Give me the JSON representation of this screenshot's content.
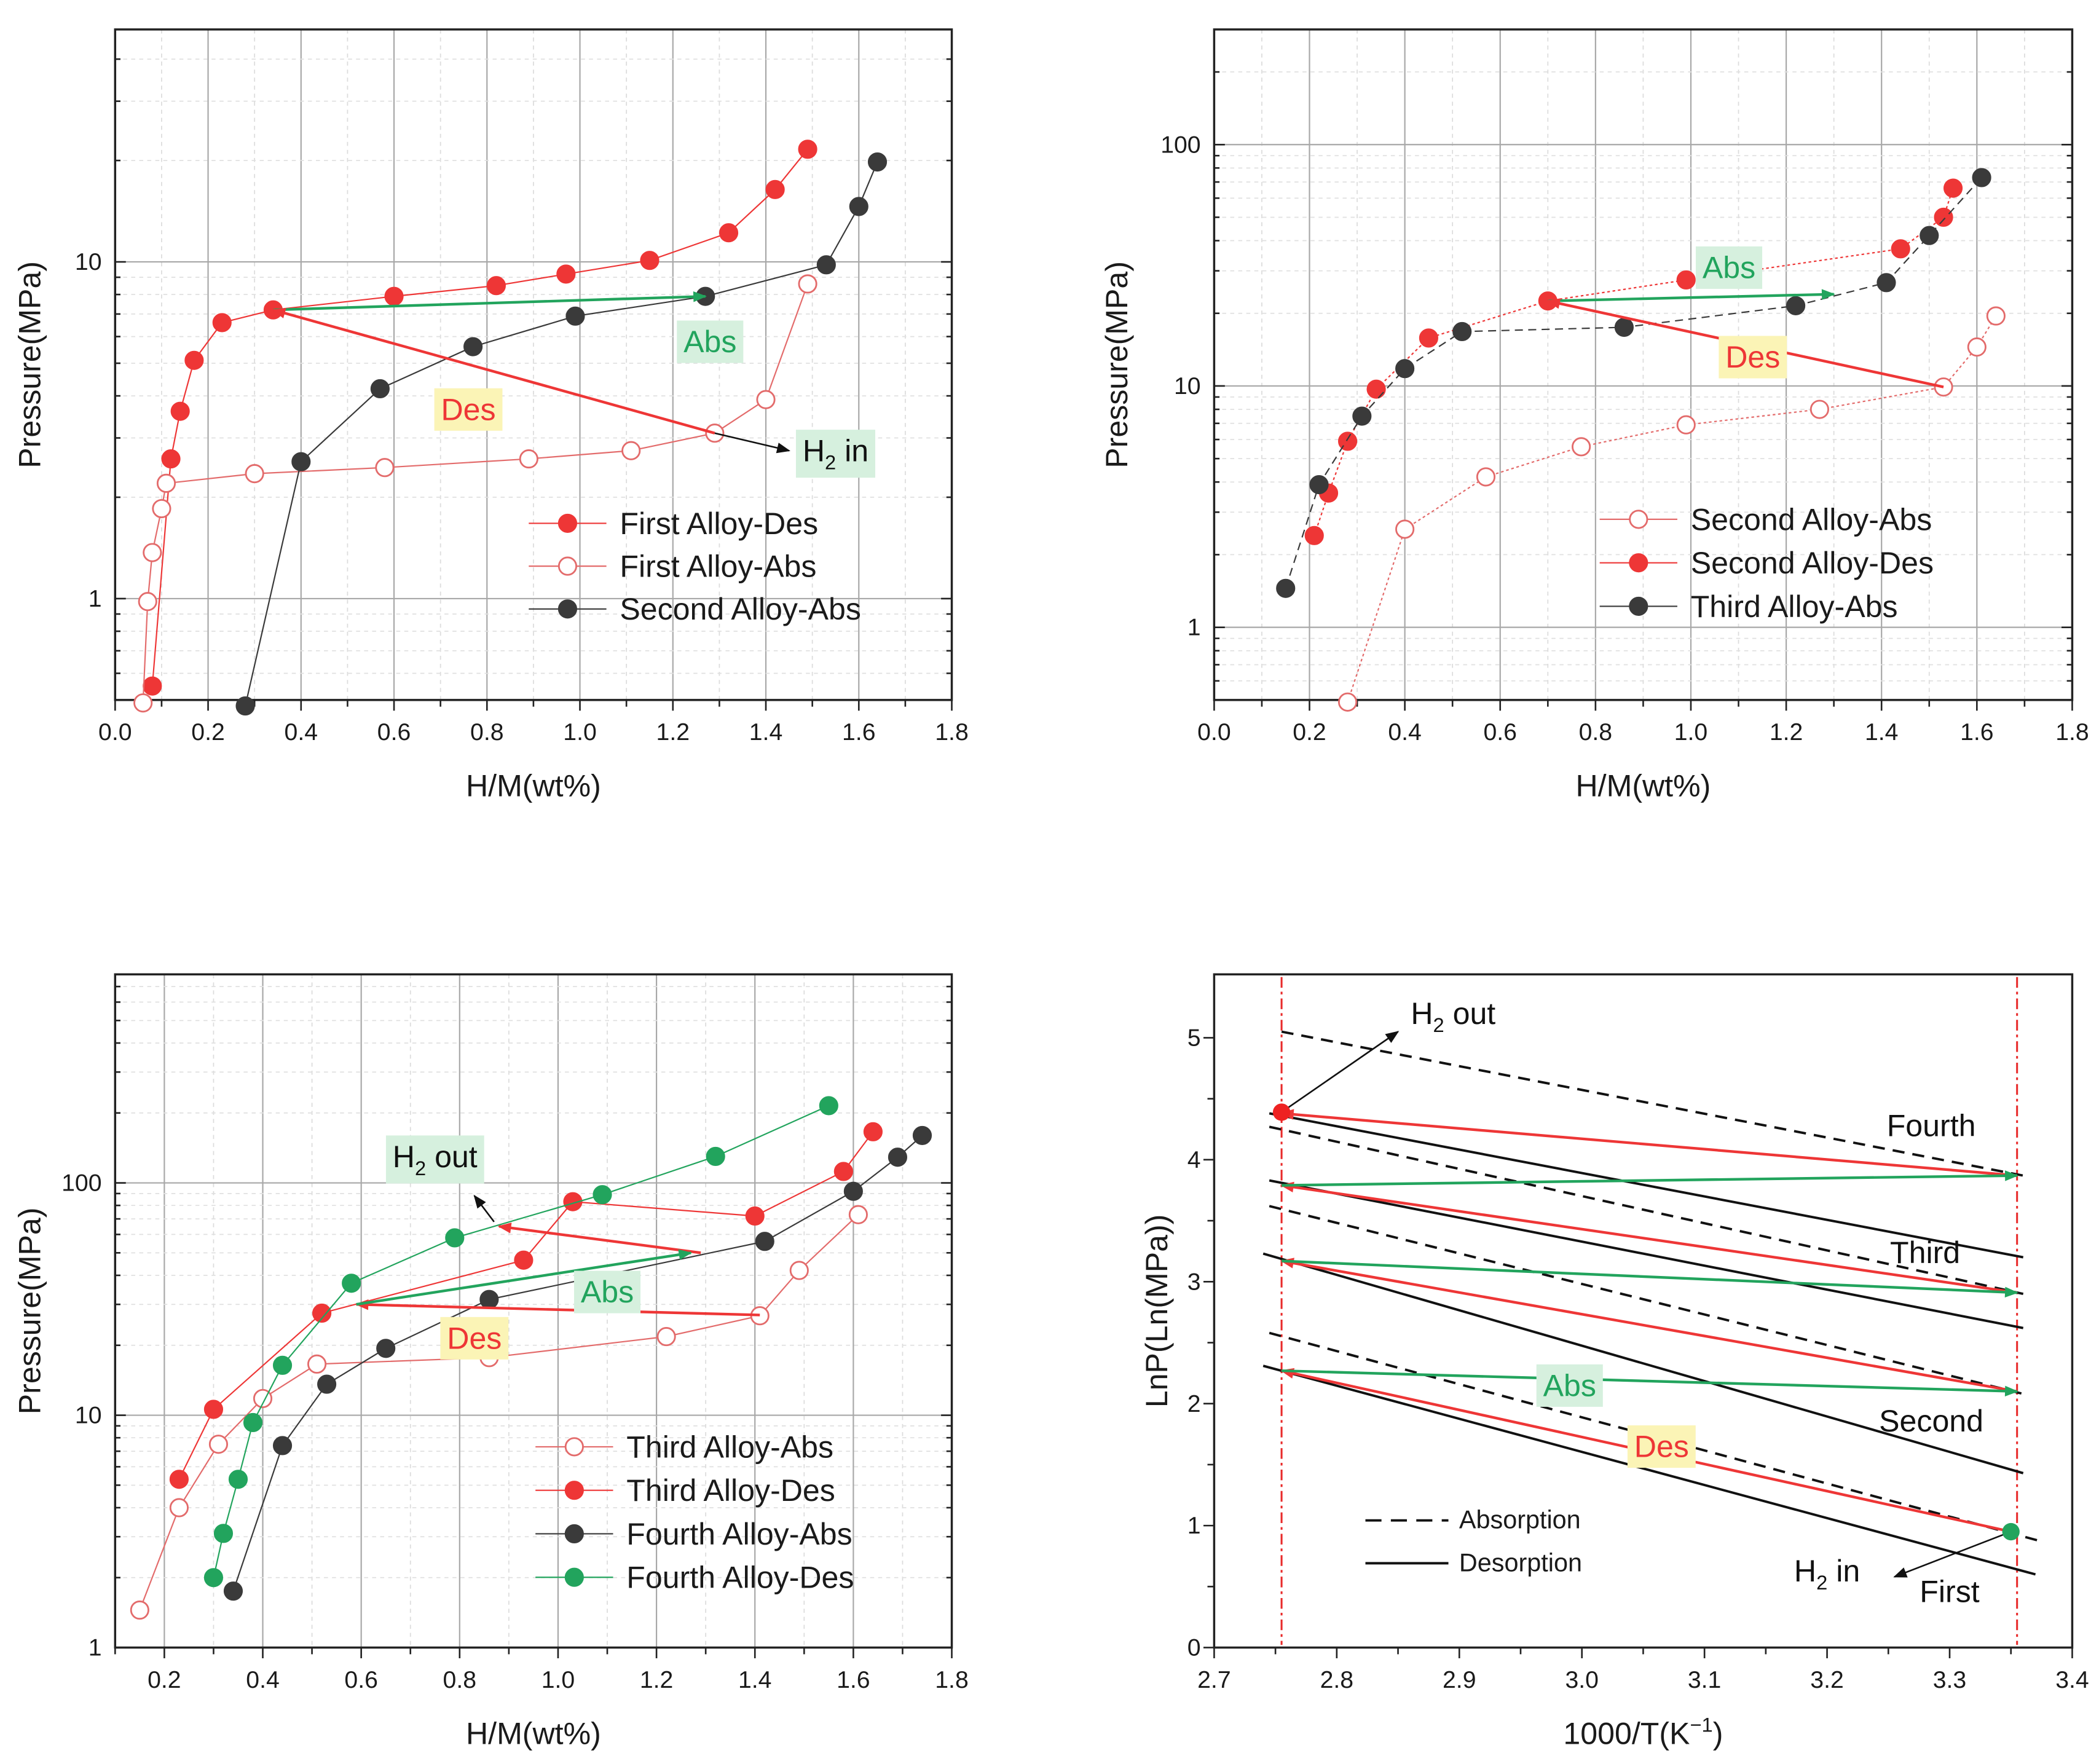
{
  "colors": {
    "des_red": "#ee3636",
    "abs_red": "#e36b6b",
    "dark": "#3a3a3a",
    "green": "#22a45d",
    "label_green_bg": "#d6f0de",
    "label_yellow_bg": "#fbf4b6"
  },
  "chart_data": [
    {
      "type": "line",
      "title": "",
      "xlabel": "H/M(wt%)",
      "ylabel": "Pressure(MPa)",
      "xlim": [
        0,
        1.8
      ],
      "ylim": [
        0.5,
        49
      ],
      "yscale": "log",
      "grid": true,
      "xticks": [
        "0.0",
        "0.2",
        "0.4",
        "0.6",
        "0.8",
        "1.0",
        "1.2",
        "1.4",
        "1.6",
        "1.8"
      ],
      "yticks": [
        "1",
        "10"
      ],
      "legend_placement": "lower-right",
      "series": [
        {
          "name": "First Alloy-Des",
          "marker": "filled",
          "color": "#ee3636",
          "line": "solid",
          "points": [
            [
              0.08,
              0.55
            ],
            [
              0.12,
              2.6
            ],
            [
              0.14,
              3.6
            ],
            [
              0.17,
              5.1
            ],
            [
              0.23,
              6.6
            ],
            [
              0.34,
              7.2
            ],
            [
              0.6,
              7.9
            ],
            [
              0.82,
              8.5
            ],
            [
              0.97,
              9.2
            ],
            [
              1.15,
              10.1
            ],
            [
              1.32,
              12.2
            ],
            [
              1.42,
              16.4
            ],
            [
              1.49,
              21.6
            ]
          ]
        },
        {
          "name": "First Alloy-Abs",
          "marker": "open",
          "color": "#e36b6b",
          "line": "solid",
          "points": [
            [
              0.06,
              0.49
            ],
            [
              0.07,
              0.98
            ],
            [
              0.08,
              1.37
            ],
            [
              0.1,
              1.85
            ],
            [
              0.11,
              2.2
            ],
            [
              0.3,
              2.35
            ],
            [
              0.58,
              2.45
            ],
            [
              0.89,
              2.6
            ],
            [
              1.11,
              2.75
            ],
            [
              1.29,
              3.1
            ],
            [
              1.4,
              3.9
            ],
            [
              1.49,
              8.6
            ]
          ]
        },
        {
          "name": "Second Alloy-Abs",
          "marker": "filled",
          "color": "#3a3a3a",
          "line": "solid",
          "points": [
            [
              0.28,
              0.48
            ],
            [
              0.4,
              2.55
            ],
            [
              0.57,
              4.2
            ],
            [
              0.77,
              5.6
            ],
            [
              0.99,
              6.9
            ],
            [
              1.27,
              7.9
            ],
            [
              1.53,
              9.8
            ],
            [
              1.6,
              14.6
            ],
            [
              1.64,
              19.8
            ]
          ]
        }
      ],
      "arrows": [
        {
          "from": [
            0.34,
            7.2
          ],
          "to": [
            1.27,
            7.9
          ],
          "color": "#22a45d"
        },
        {
          "from": [
            1.29,
            3.1
          ],
          "to": [
            0.34,
            7.2
          ],
          "color": "#ee3636"
        },
        {
          "from": [
            1.29,
            3.1
          ],
          "to": [
            1.45,
            2.75
          ],
          "color": "#111111"
        }
      ],
      "annotations": [
        {
          "text": [
            "Abs"
          ],
          "x": 1.28,
          "y": 5.8,
          "color": "#22a45d",
          "bg": "#d6f0de"
        },
        {
          "text": [
            "Des"
          ],
          "x": 0.76,
          "y": 3.65,
          "color": "#ee3636",
          "bg": "#fbf4b6"
        },
        {
          "text": [
            "H",
            "2",
            " in"
          ],
          "x": 1.55,
          "y": 2.75,
          "color": "#111111",
          "bg": "#d6f0de"
        }
      ]
    },
    {
      "type": "line",
      "title": "",
      "xlabel": "H/M(wt%)",
      "ylabel": "Pressure(MPa)",
      "xlim": [
        0,
        1.8
      ],
      "ylim": [
        0.5,
        300
      ],
      "yscale": "log",
      "grid": true,
      "xticks": [
        "0.0",
        "0.2",
        "0.4",
        "0.6",
        "0.8",
        "1.0",
        "1.2",
        "1.4",
        "1.6",
        "1.8"
      ],
      "yticks": [
        "1",
        "10",
        "100"
      ],
      "legend_placement": "lower-right",
      "series": [
        {
          "name": "Second Alloy-Abs",
          "marker": "open",
          "color": "#e36b6b",
          "line": "dotted",
          "points": [
            [
              0.28,
              0.49
            ],
            [
              0.4,
              2.55
            ],
            [
              0.57,
              4.2
            ],
            [
              0.77,
              5.6
            ],
            [
              0.99,
              6.9
            ],
            [
              1.27,
              8.0
            ],
            [
              1.53,
              9.9
            ],
            [
              1.6,
              14.5
            ],
            [
              1.64,
              19.5
            ]
          ]
        },
        {
          "name": "Second Alloy-Des",
          "marker": "filled",
          "color": "#ee3636",
          "line": "dotted",
          "points": [
            [
              0.21,
              2.4
            ],
            [
              0.24,
              3.6
            ],
            [
              0.28,
              5.9
            ],
            [
              0.34,
              9.7
            ],
            [
              0.45,
              15.8
            ],
            [
              0.7,
              22.5
            ],
            [
              0.99,
              27.5
            ],
            [
              1.44,
              37
            ],
            [
              1.53,
              50
            ],
            [
              1.55,
              66
            ]
          ]
        },
        {
          "name": "Third Alloy-Abs",
          "marker": "filled",
          "color": "#3a3a3a",
          "line": "dashed",
          "points": [
            [
              0.15,
              1.45
            ],
            [
              0.22,
              3.9
            ],
            [
              0.31,
              7.5
            ],
            [
              0.4,
              11.8
            ],
            [
              0.52,
              16.8
            ],
            [
              0.86,
              17.5
            ],
            [
              1.22,
              21.5
            ],
            [
              1.41,
              26.8
            ],
            [
              1.5,
              42
            ],
            [
              1.61,
              73
            ]
          ]
        }
      ],
      "arrows": [
        {
          "from": [
            0.7,
            22.5
          ],
          "to": [
            1.3,
            24
          ],
          "color": "#22a45d"
        },
        {
          "from": [
            1.53,
            9.9
          ],
          "to": [
            0.7,
            22.5
          ],
          "color": "#ee3636"
        }
      ],
      "annotations": [
        {
          "text": [
            "Abs"
          ],
          "x": 1.08,
          "y": 31,
          "color": "#22a45d",
          "bg": "#d6f0de"
        },
        {
          "text": [
            "Des"
          ],
          "x": 1.13,
          "y": 13.2,
          "color": "#ee3636",
          "bg": "#fbf4b6"
        }
      ]
    },
    {
      "type": "line",
      "title": "",
      "xlabel": "H/M(wt%)",
      "ylabel": "Pressure(MPa)",
      "xlim": [
        0.1,
        1.8
      ],
      "ylim": [
        1,
        790
      ],
      "yscale": "log",
      "grid": true,
      "xticks": [
        "0.2",
        "0.4",
        "0.6",
        "0.8",
        "1.0",
        "1.2",
        "1.4",
        "1.6",
        "1.8"
      ],
      "yticks": [
        "1",
        "10",
        "100"
      ],
      "legend_placement": "lower-right",
      "series": [
        {
          "name": "Third Alloy-Abs",
          "marker": "open",
          "color": "#e36b6b",
          "line": "solid",
          "points": [
            [
              0.15,
              1.45
            ],
            [
              0.23,
              4.0
            ],
            [
              0.31,
              7.5
            ],
            [
              0.4,
              11.8
            ],
            [
              0.51,
              16.6
            ],
            [
              0.86,
              17.7
            ],
            [
              1.22,
              21.8
            ],
            [
              1.41,
              26.8
            ],
            [
              1.49,
              42
            ],
            [
              1.61,
              73
            ]
          ]
        },
        {
          "name": "Third Alloy-Des",
          "marker": "filled",
          "color": "#ee3636",
          "line": "solid",
          "points": [
            [
              0.23,
              5.3
            ],
            [
              0.3,
              10.6
            ],
            [
              0.52,
              27.5
            ],
            [
              0.93,
              46.5
            ],
            [
              1.03,
              83
            ],
            [
              1.4,
              72
            ],
            [
              1.58,
              112
            ],
            [
              1.64,
              166
            ]
          ]
        },
        {
          "name": "Fourth Alloy-Abs",
          "marker": "filled",
          "color": "#3a3a3a",
          "line": "solid",
          "points": [
            [
              0.34,
              1.75
            ],
            [
              0.44,
              7.4
            ],
            [
              0.53,
              13.6
            ],
            [
              0.65,
              19.4
            ],
            [
              0.86,
              31.5
            ],
            [
              1.42,
              56
            ],
            [
              1.6,
              92
            ],
            [
              1.69,
              129
            ],
            [
              1.74,
              160
            ]
          ]
        },
        {
          "name": "Fourth Alloy-Des",
          "marker": "filled",
          "color": "#22a45d",
          "line": "solid",
          "points": [
            [
              0.3,
              2.0
            ],
            [
              0.32,
              3.1
            ],
            [
              0.35,
              5.3
            ],
            [
              0.38,
              9.3
            ],
            [
              0.44,
              16.4
            ],
            [
              0.58,
              37
            ],
            [
              0.79,
              58
            ],
            [
              1.09,
              89
            ],
            [
              1.32,
              130
            ],
            [
              1.55,
              215
            ]
          ]
        }
      ],
      "arrows": [
        {
          "from": [
            1.29,
            50
          ],
          "to": [
            0.88,
            65
          ],
          "color": "#ee3636"
        },
        {
          "from": [
            1.41,
            27
          ],
          "to": [
            0.59,
            30
          ],
          "color": "#ee3636"
        },
        {
          "from": [
            0.59,
            30
          ],
          "to": [
            1.27,
            50
          ],
          "color": "#22a45d"
        },
        {
          "from": [
            0.87,
            68
          ],
          "to": [
            0.83,
            88
          ],
          "color": "#111111"
        }
      ],
      "annotations": [
        {
          "text": [
            "H",
            "2",
            " out"
          ],
          "x": 0.75,
          "y": 130,
          "color": "#111111",
          "bg": "#d6f0de"
        },
        {
          "text": [
            "Abs"
          ],
          "x": 1.1,
          "y": 34,
          "color": "#22a45d",
          "bg": "#d6f0de"
        },
        {
          "text": [
            "Des"
          ],
          "x": 0.83,
          "y": 21.5,
          "color": "#ee3636",
          "bg": "#fbf4b6"
        }
      ]
    },
    {
      "type": "line",
      "title": "",
      "xlabel": [
        "1000/T(K",
        "−1",
        ")"
      ],
      "ylabel": "LnP(Ln(MPa))",
      "xlim": [
        2.7,
        3.4
      ],
      "ylim": [
        0,
        5.52
      ],
      "yscale": "linear",
      "grid": false,
      "xticks": [
        "2.7",
        "2.8",
        "2.9",
        "3.0",
        "3.1",
        "3.2",
        "3.3",
        "3.4"
      ],
      "yticks": [
        "0",
        "1",
        "2",
        "3",
        "4",
        "5"
      ],
      "legend_placement": "lower-left",
      "legend": [
        {
          "name": "Absorption",
          "line": "dashed"
        },
        {
          "name": "Desorption",
          "line": "solid"
        }
      ],
      "lines": [
        {
          "name": "Fourth Absorption",
          "line": "dashed",
          "points": [
            [
              2.755,
              5.05
            ],
            [
              3.36,
              3.87
            ]
          ]
        },
        {
          "name": "Third Absorption",
          "line": "dashed",
          "points": [
            [
              2.745,
              4.27
            ],
            [
              3.36,
              2.9
            ]
          ]
        },
        {
          "name": "Second Absorption",
          "line": "dashed",
          "points": [
            [
              2.745,
              3.62
            ],
            [
              3.36,
              2.08
            ]
          ]
        },
        {
          "name": "First Absorption",
          "line": "dashed",
          "points": [
            [
              2.745,
              2.58
            ],
            [
              3.375,
              0.87
            ]
          ]
        },
        {
          "name": "Fourth Desorption",
          "line": "solid",
          "points": [
            [
              2.745,
              4.38
            ],
            [
              3.36,
              3.2
            ]
          ]
        },
        {
          "name": "Third Desorption",
          "line": "solid",
          "points": [
            [
              2.745,
              3.83
            ],
            [
              3.36,
              2.62
            ]
          ]
        },
        {
          "name": "Second Desorption",
          "line": "solid",
          "points": [
            [
              2.74,
              3.23
            ],
            [
              3.36,
              1.43
            ]
          ]
        },
        {
          "name": "First Desorption",
          "line": "solid",
          "points": [
            [
              2.74,
              2.31
            ],
            [
              3.37,
              0.6
            ]
          ]
        }
      ],
      "reference_x": [
        2.755,
        3.355
      ],
      "markers": [
        {
          "x": 2.755,
          "y": 4.39,
          "color": "#ee2222"
        },
        {
          "x": 3.35,
          "y": 0.95,
          "color": "#22a45d"
        }
      ],
      "arrows": [
        {
          "from": [
            3.355,
            3.87
          ],
          "to": [
            2.755,
            4.38
          ],
          "color": "#ee3636"
        },
        {
          "from": [
            3.355,
            2.91
          ],
          "to": [
            2.755,
            3.79
          ],
          "color": "#ee3636"
        },
        {
          "from": [
            3.355,
            2.1
          ],
          "to": [
            2.755,
            3.17
          ],
          "color": "#ee3636"
        },
        {
          "from": [
            3.35,
            0.95
          ],
          "to": [
            2.755,
            2.27
          ],
          "color": "#ee3636"
        },
        {
          "from": [
            2.755,
            3.79
          ],
          "to": [
            3.355,
            3.87
          ],
          "color": "#22a45d"
        },
        {
          "from": [
            2.755,
            3.17
          ],
          "to": [
            3.355,
            2.91
          ],
          "color": "#22a45d"
        },
        {
          "from": [
            2.755,
            2.27
          ],
          "to": [
            3.355,
            2.1
          ],
          "color": "#22a45d"
        },
        {
          "from": [
            2.755,
            4.39
          ],
          "to": [
            2.85,
            5.05
          ],
          "color": "#111111"
        },
        {
          "from": [
            3.35,
            0.95
          ],
          "to": [
            3.255,
            0.58
          ],
          "color": "#111111"
        }
      ],
      "annotations": [
        {
          "text": [
            "H",
            "2",
            " out"
          ],
          "x": 2.895,
          "y": 5.2,
          "color": "#111111",
          "bg": ""
        },
        {
          "text": [
            "Fourth"
          ],
          "x": 3.285,
          "y": 4.28,
          "color": "#111111",
          "bg": ""
        },
        {
          "text": [
            "Third"
          ],
          "x": 3.28,
          "y": 3.24,
          "color": "#111111",
          "bg": ""
        },
        {
          "text": [
            "Second"
          ],
          "x": 3.285,
          "y": 1.86,
          "color": "#111111",
          "bg": ""
        },
        {
          "text": [
            "First"
          ],
          "x": 3.3,
          "y": 0.46,
          "color": "#111111",
          "bg": ""
        },
        {
          "text": [
            "Abs"
          ],
          "x": 2.99,
          "y": 2.15,
          "color": "#22a45d",
          "bg": "#d6f0de"
        },
        {
          "text": [
            "Des"
          ],
          "x": 3.065,
          "y": 1.65,
          "color": "#ee3636",
          "bg": "#fbf4b6"
        },
        {
          "text": [
            "H",
            "2",
            " in"
          ],
          "x": 3.2,
          "y": 0.63,
          "color": "#111111",
          "bg": ""
        }
      ]
    }
  ]
}
